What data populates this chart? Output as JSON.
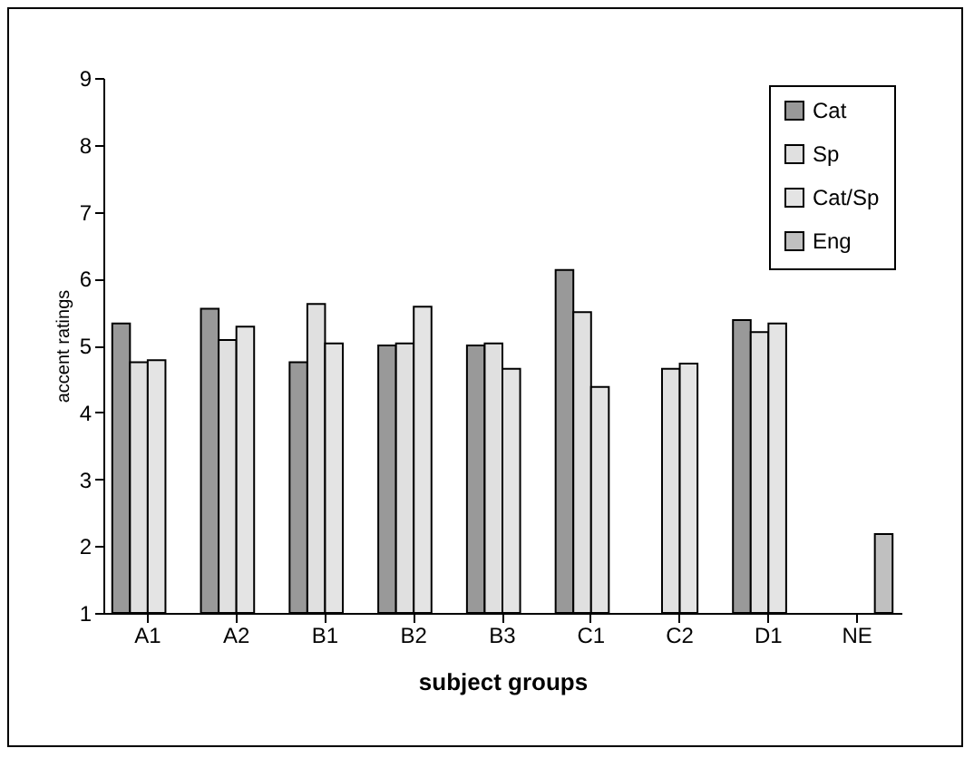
{
  "chart_data": {
    "type": "bar",
    "xlabel": "subject groups",
    "ylabel": "accent ratings",
    "categories": [
      "A1",
      "A2",
      "B1",
      "B2",
      "B3",
      "C1",
      "C2",
      "D1",
      "NE"
    ],
    "series": [
      {
        "name": "Cat",
        "color": "#999999",
        "values": [
          5.33,
          5.55,
          4.75,
          5.0,
          5.0,
          6.13,
          null,
          5.38,
          null
        ]
      },
      {
        "name": "Sp",
        "color": "#e0e0e0",
        "values": [
          4.75,
          5.08,
          5.62,
          5.03,
          5.03,
          5.5,
          4.65,
          5.2,
          null
        ]
      },
      {
        "name": "Cat/Sp",
        "color": "#e4e4e4",
        "values": [
          4.78,
          5.28,
          5.03,
          5.58,
          4.65,
          4.38,
          4.73,
          5.33,
          null
        ]
      },
      {
        "name": "Eng",
        "color": "#c0c0c0",
        "values": [
          null,
          null,
          null,
          null,
          null,
          null,
          null,
          null,
          2.18
        ]
      }
    ],
    "ylim": [
      1,
      9
    ],
    "yticks": [
      1,
      2,
      3,
      4,
      5,
      6,
      7,
      8,
      9
    ],
    "grid": false,
    "legend": "top right"
  }
}
